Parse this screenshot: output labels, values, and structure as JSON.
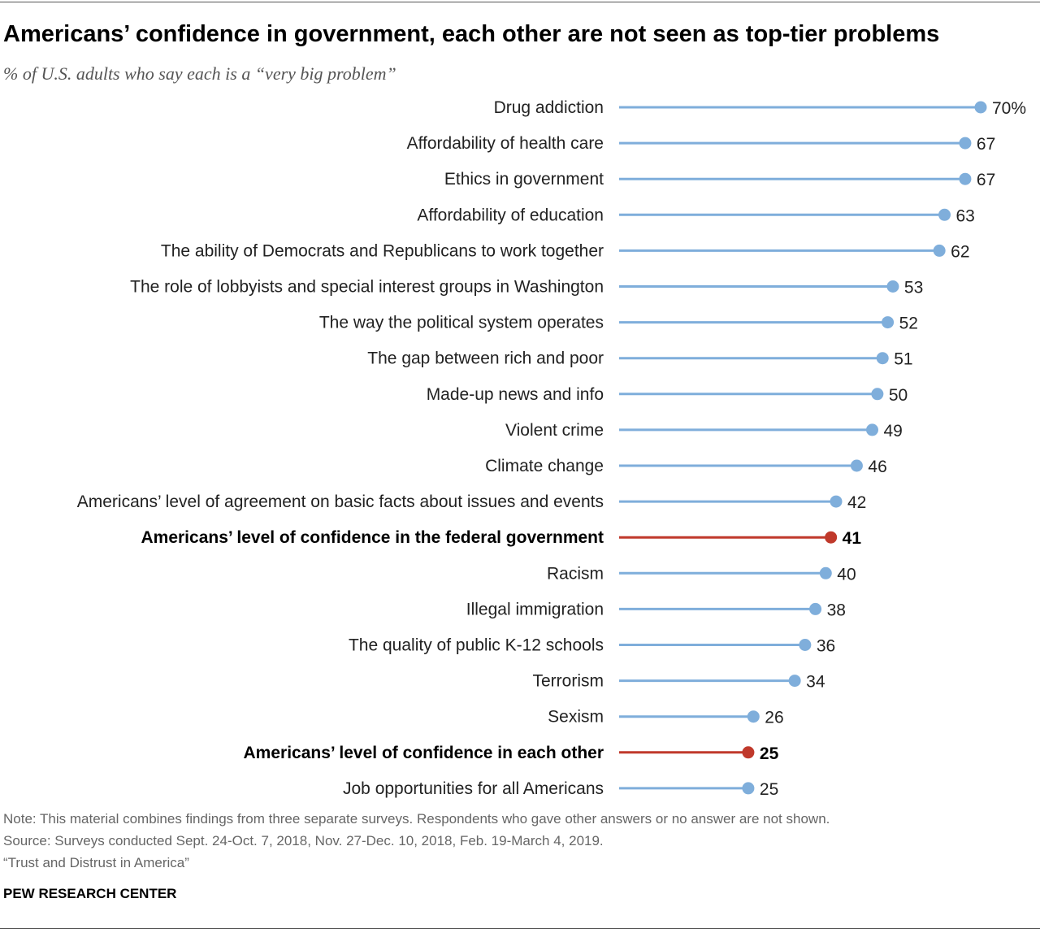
{
  "header": {
    "title": "Americans’ confidence in government, each other are not seen as top-tier problems",
    "subtitle": "% of U.S. adults who say each is a “very big problem”"
  },
  "colors": {
    "default": "#7faedb",
    "highlight": "#c0392b"
  },
  "chart_data": {
    "type": "bar",
    "style": "lollipop",
    "categories": [
      "Drug addiction",
      "Affordability of health care",
      "Ethics in government",
      "Affordability of education",
      "The ability of Democrats and Republicans to work together",
      "The role of lobbyists and special interest groups in Washington",
      "The way the political system operates",
      "The gap between rich and poor",
      "Made-up news and info",
      "Violent crime",
      "Climate change",
      "Americans’ level of agreement on basic facts about issues and events",
      "Americans’ level of confidence in the federal government",
      "Racism",
      "Illegal immigration",
      "The quality of public K-12 schools",
      "Terrorism",
      "Sexism",
      "Americans’ level of confidence in each other",
      "Job opportunities for all Americans"
    ],
    "values": [
      70,
      67,
      67,
      63,
      62,
      53,
      52,
      51,
      50,
      49,
      46,
      42,
      41,
      40,
      38,
      36,
      34,
      26,
      25,
      25
    ],
    "value_labels": [
      "70%",
      "67",
      "67",
      "63",
      "62",
      "53",
      "52",
      "51",
      "50",
      "49",
      "46",
      "42",
      "41",
      "40",
      "38",
      "36",
      "34",
      "26",
      "25",
      "25"
    ],
    "highlighted": [
      "Americans’ level of confidence in the federal government",
      "Americans’ level of confidence in each other"
    ],
    "xlim": [
      0,
      70
    ],
    "grid": false,
    "legend": "none",
    "title": "Americans’ confidence in government, each other are not seen as top-tier problems",
    "xlabel": "",
    "ylabel": ""
  },
  "footer": {
    "note": "Note: This material combines findings from three separate surveys. Respondents who gave other answers or no answer are not shown.",
    "source": "Source: Surveys conducted Sept. 24-Oct. 7, 2018, Nov. 27-Dec. 10, 2018, Feb. 19-March 4, 2019.",
    "report": "“Trust and Distrust in America”",
    "brand": "PEW RESEARCH CENTER"
  }
}
